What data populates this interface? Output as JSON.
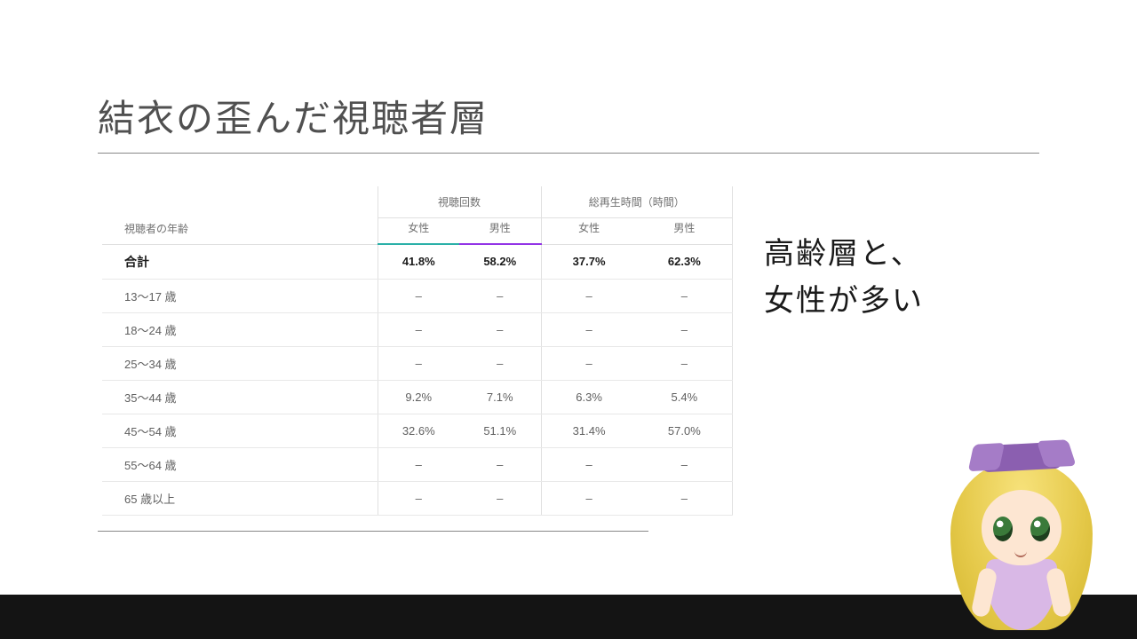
{
  "title": "結衣の歪んだ視聴者層",
  "annotation_line1": "高齢層と、",
  "annotation_line2": "女性が多い",
  "table": {
    "row_header_label": "視聴者の年齢",
    "group1": "視聴回数",
    "group2": "総再生時間（時間）",
    "sub_female": "女性",
    "sub_male": "男性",
    "total_label": "合計",
    "total": {
      "views_f": "41.8%",
      "views_m": "58.2%",
      "watch_f": "37.7%",
      "watch_m": "62.3%"
    },
    "rows": [
      {
        "label": "13～17 歳",
        "views_f": "–",
        "views_m": "–",
        "watch_f": "–",
        "watch_m": "–"
      },
      {
        "label": "18～24 歳",
        "views_f": "–",
        "views_m": "–",
        "watch_f": "–",
        "watch_m": "–"
      },
      {
        "label": "25～34 歳",
        "views_f": "–",
        "views_m": "–",
        "watch_f": "–",
        "watch_m": "–"
      },
      {
        "label": "35～44 歳",
        "views_f": "9.2%",
        "views_m": "7.1%",
        "watch_f": "6.3%",
        "watch_m": "5.4%"
      },
      {
        "label": "45～54 歳",
        "views_f": "32.6%",
        "views_m": "51.1%",
        "watch_f": "31.4%",
        "watch_m": "57.0%"
      },
      {
        "label": "55～64 歳",
        "views_f": "–",
        "views_m": "–",
        "watch_f": "–",
        "watch_m": "–"
      },
      {
        "label": "65 歳以上",
        "views_f": "–",
        "views_m": "–",
        "watch_f": "–",
        "watch_m": "–"
      }
    ],
    "accent_female_color": "#2bb0a8",
    "accent_male_color": "#9334e6",
    "border_color": "#e8e8e8",
    "header_text_color": "#707070",
    "body_text_color": "#606060"
  },
  "colors": {
    "background": "#ffffff",
    "title_color": "#505050",
    "underline_color": "#888888",
    "bottom_bar": "#141414",
    "annotation_color": "#1a1a1a"
  }
}
